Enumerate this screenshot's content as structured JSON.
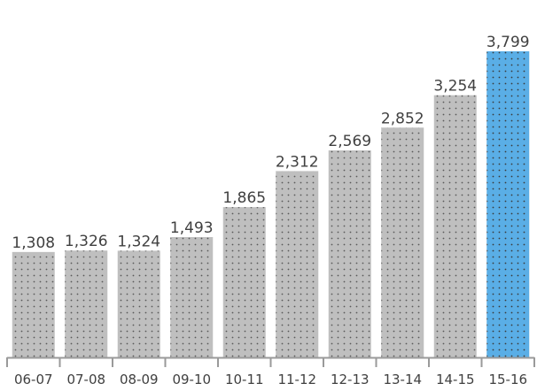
{
  "chart_data": {
    "type": "bar",
    "categories": [
      "06-07",
      "07-08",
      "08-09",
      "09-10",
      "10-11",
      "11-12",
      "12-13",
      "13-14",
      "14-15",
      "15-16"
    ],
    "values": [
      1308,
      1326,
      1324,
      1493,
      1865,
      2312,
      2569,
      2852,
      3254,
      3799
    ],
    "value_labels": [
      "1,308",
      "1,326",
      "1,324",
      "1,493",
      "1,865",
      "2,312",
      "2,569",
      "2,852",
      "3,254",
      "3,799"
    ],
    "title": "",
    "xlabel": "",
    "ylabel": "",
    "ylim": [
      0,
      3799
    ],
    "grid": false,
    "legend": "none",
    "colors": {
      "bar": "#bfbfbf",
      "highlight_bar": "#5aaee6",
      "dot_pattern": "#595959",
      "axis": "#9a9a9a",
      "text": "#404040"
    },
    "highlight_index": 9
  }
}
